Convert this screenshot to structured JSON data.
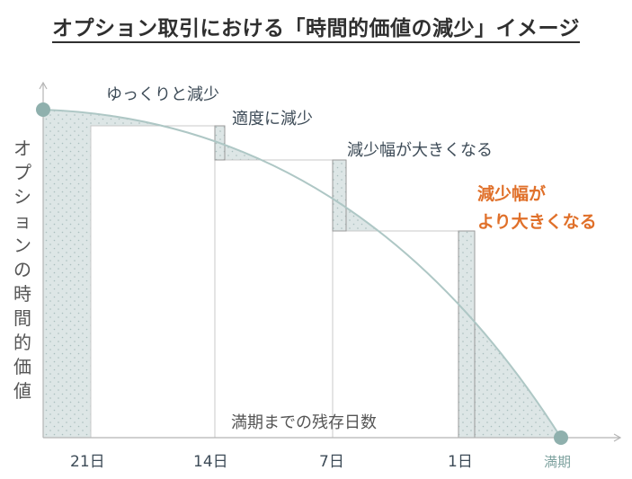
{
  "title": "オプション取引における「時間的価値の減少」イメージ",
  "y_axis_label": "オプションの時間的価値",
  "x_axis_label": "満期までの残存日数",
  "x_ticks": [
    "21日",
    "14日",
    "7日",
    "1日",
    "満期"
  ],
  "annotations": {
    "slow": "ゆっくりと減少",
    "moderate": "適度に減少",
    "larger": "減少幅が大きくなる",
    "largest_line1": "減少幅が",
    "largest_line2": "より大きくなる"
  },
  "colors": {
    "fill": "#dde6e6",
    "curve": "#aec7c5",
    "marker": "#8fb0ad",
    "accent": "#e0702a",
    "axis": "#b5b5b5"
  }
}
